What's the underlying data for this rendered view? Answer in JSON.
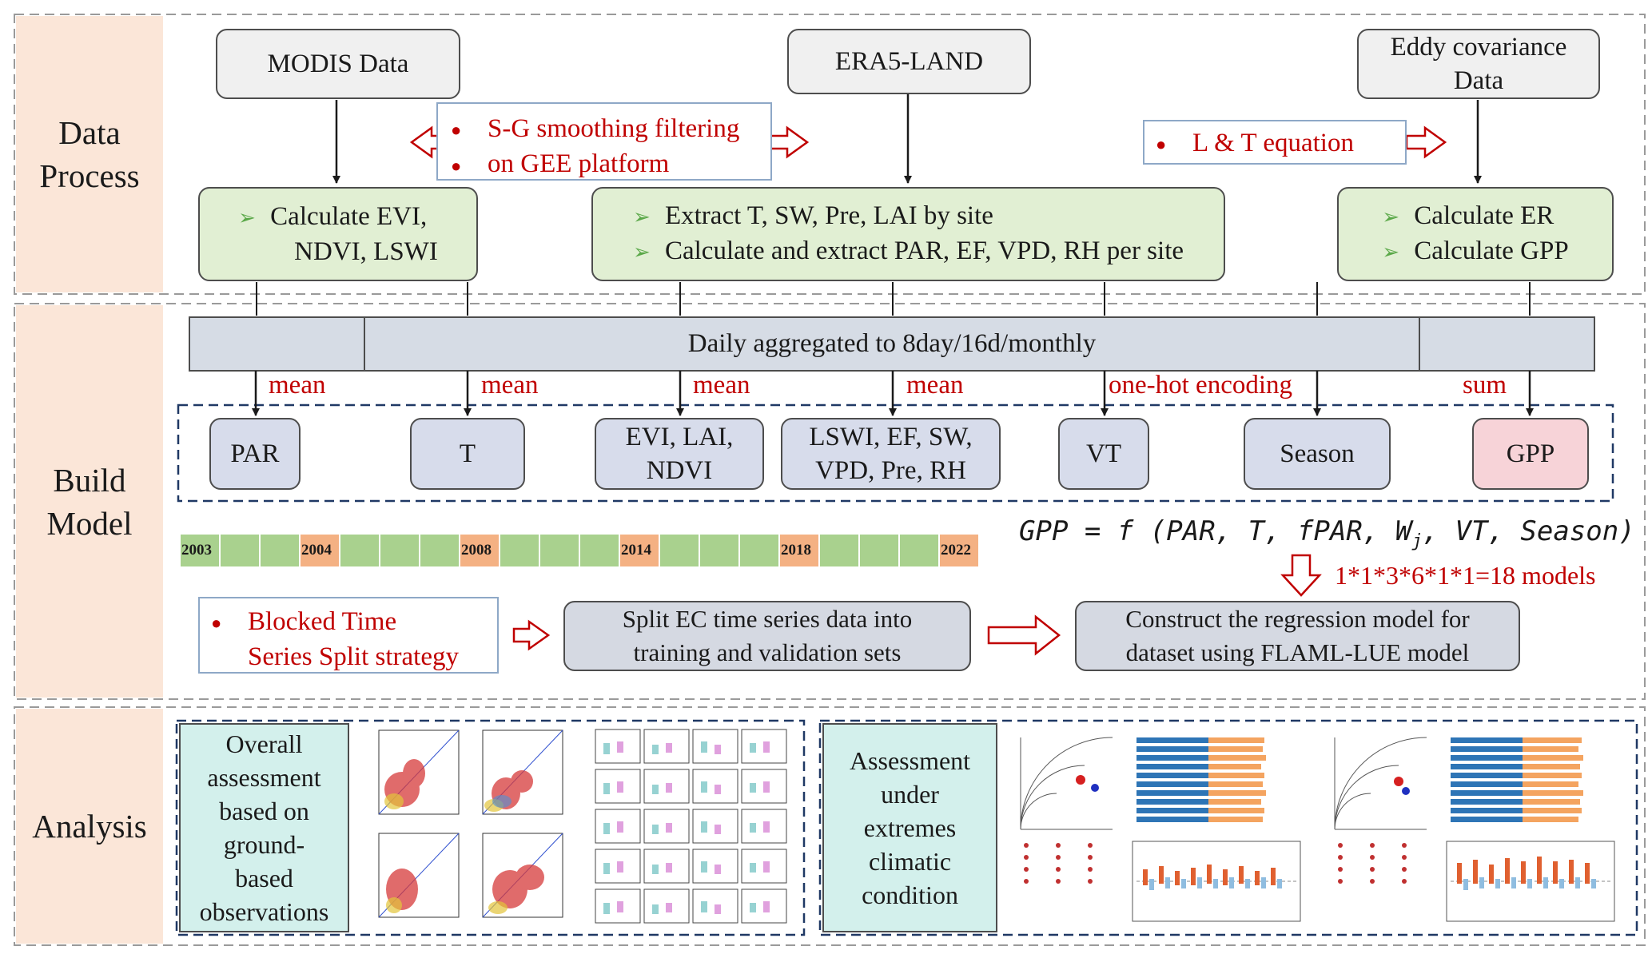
{
  "sections": {
    "data_process": "Data Process",
    "build_model": "Build Model",
    "analysis": "Analysis"
  },
  "sources": {
    "modis": "MODIS Data",
    "era5": "ERA5-LAND",
    "eddy_line1": "Eddy covariance",
    "eddy_line2": "Data"
  },
  "notes": {
    "sg_line1": "S-G smoothing filtering",
    "sg_line2": "on GEE platform",
    "lt": "L & T equation"
  },
  "process_boxes": {
    "modis_line1": "Calculate EVI,",
    "modis_line2": "NDVI, LSWI",
    "era5_item1": "Extract T, SW, Pre, LAI  by site",
    "era5_item2": "Calculate and extract PAR, EF, VPD, RH per site",
    "eddy_item1": "Calculate ER",
    "eddy_item2": "Calculate GPP"
  },
  "aggregation_bar": "Daily aggregated to 8day/16d/monthly",
  "aggregation_methods": [
    "mean",
    "mean",
    "mean",
    "mean",
    "one-hot encoding",
    "sum"
  ],
  "variables": {
    "par": "PAR",
    "t": "T",
    "veg_line1": "EVI, LAI,",
    "veg_line2": "NDVI",
    "water_line1": "LSWI, EF, SW,",
    "water_line2": "VPD, Pre, RH",
    "vt": "VT",
    "season": "Season",
    "gpp": "GPP"
  },
  "timeline": {
    "years": [
      "2003",
      "2004",
      "2008",
      "2014",
      "2018",
      "2022"
    ],
    "highlight_color": "#f4b183",
    "base_color": "#a9d18e"
  },
  "equation": "GPP = f (PAR, T, fPAR, W_j, VT, Season)",
  "equation_parts": {
    "lhs": "GPP",
    "eq": " = ",
    "f": "f",
    "args_before": " (PAR, T, fPAR, W",
    "sub": "j",
    "args_after": ", VT, Season)"
  },
  "models_count": "1*1*3*6*1*1=18 models",
  "strategy_line1": "Blocked Time",
  "strategy_line2": "Series Split strategy",
  "split_line1": "Split EC time series data into",
  "split_line2": "training and validation sets",
  "construct_line1": "Construct the regression model for",
  "construct_line2": "dataset using FLAML-LUE model",
  "analysis": {
    "overall_lines": [
      "Overall",
      "assessment",
      "based on",
      "ground-",
      "based",
      "observations"
    ],
    "extreme_lines": [
      "Assessment",
      "under",
      "extremes",
      "climatic",
      "condition"
    ]
  },
  "colors": {
    "accent_red": "#c00000",
    "section_bg": "#fbe6d8",
    "green_box": "#e1efd3",
    "blue_box": "#d7dceb",
    "pink_box": "#f7d3d8",
    "teal_box": "#d3f0ec",
    "bar_fill": "#d6dce5"
  }
}
